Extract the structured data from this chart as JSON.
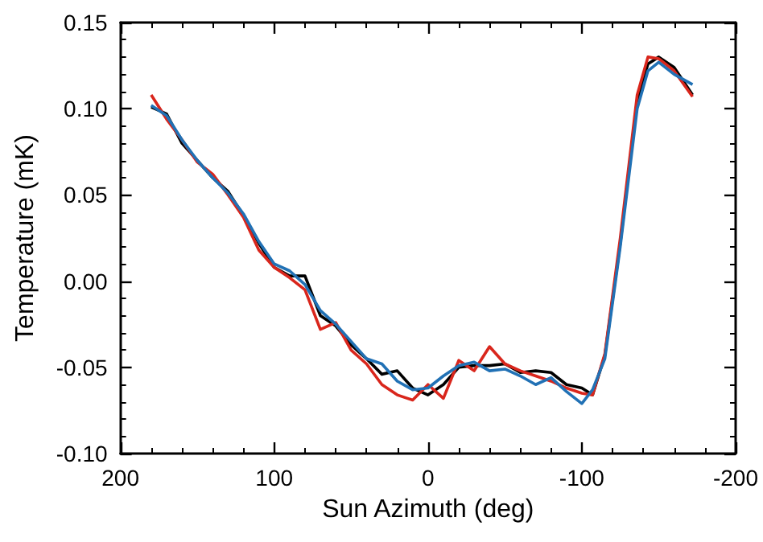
{
  "chart_data": {
    "type": "line",
    "xlabel": "Sun Azimuth (deg)",
    "ylabel": "Temperature (mK)",
    "x": [
      180,
      170,
      160,
      150,
      140,
      130,
      120,
      110,
      100,
      90,
      80,
      70,
      60,
      50,
      40,
      30,
      20,
      10,
      0,
      -10,
      -20,
      -30,
      -40,
      -50,
      -60,
      -70,
      -80,
      -90,
      -100,
      -107,
      -115,
      -125,
      -136,
      -143,
      -150,
      -160,
      -172
    ],
    "series": [
      {
        "color": "#000000",
        "values": [
          0.101,
          0.097,
          0.08,
          0.07,
          0.06,
          0.052,
          0.038,
          0.022,
          0.008,
          0.003,
          0.003,
          -0.02,
          -0.026,
          -0.037,
          -0.045,
          -0.054,
          -0.052,
          -0.062,
          -0.066,
          -0.06,
          -0.05,
          -0.049,
          -0.049,
          -0.048,
          -0.053,
          -0.052,
          -0.053,
          -0.06,
          -0.062,
          -0.066,
          -0.043,
          0.022,
          0.105,
          0.126,
          0.13,
          0.124,
          0.108
        ]
      },
      {
        "color": "#d9261c",
        "values": [
          0.108,
          0.094,
          0.082,
          0.069,
          0.062,
          0.05,
          0.037,
          0.018,
          0.008,
          0.002,
          -0.005,
          -0.028,
          -0.024,
          -0.04,
          -0.048,
          -0.06,
          -0.066,
          -0.069,
          -0.06,
          -0.068,
          -0.046,
          -0.052,
          -0.038,
          -0.048,
          -0.052,
          -0.055,
          -0.058,
          -0.062,
          -0.065,
          -0.066,
          -0.042,
          0.025,
          0.108,
          0.13,
          0.129,
          0.122,
          0.107
        ]
      },
      {
        "color": "#2171b5",
        "values": [
          0.102,
          0.096,
          0.082,
          0.07,
          0.06,
          0.051,
          0.039,
          0.023,
          0.01,
          0.006,
          -0.002,
          -0.017,
          -0.025,
          -0.035,
          -0.045,
          -0.048,
          -0.058,
          -0.063,
          -0.062,
          -0.055,
          -0.049,
          -0.047,
          -0.052,
          -0.051,
          -0.055,
          -0.06,
          -0.056,
          -0.064,
          -0.071,
          -0.063,
          -0.045,
          0.02,
          0.1,
          0.122,
          0.127,
          0.12,
          0.114
        ]
      }
    ],
    "xlim": [
      200,
      -200
    ],
    "xticks": [
      200,
      100,
      0,
      -100,
      -200
    ],
    "ylim": [
      -0.1,
      0.15
    ],
    "yticks": [
      {
        "value": -0.1,
        "label": "-0.10"
      },
      -0.05,
      {
        "value": 0,
        "label": "0.00"
      },
      0.05,
      {
        "value": 0.1,
        "label": "0.10"
      },
      0.15
    ],
    "grid": false,
    "marker": "none",
    "line_style": "solid"
  }
}
